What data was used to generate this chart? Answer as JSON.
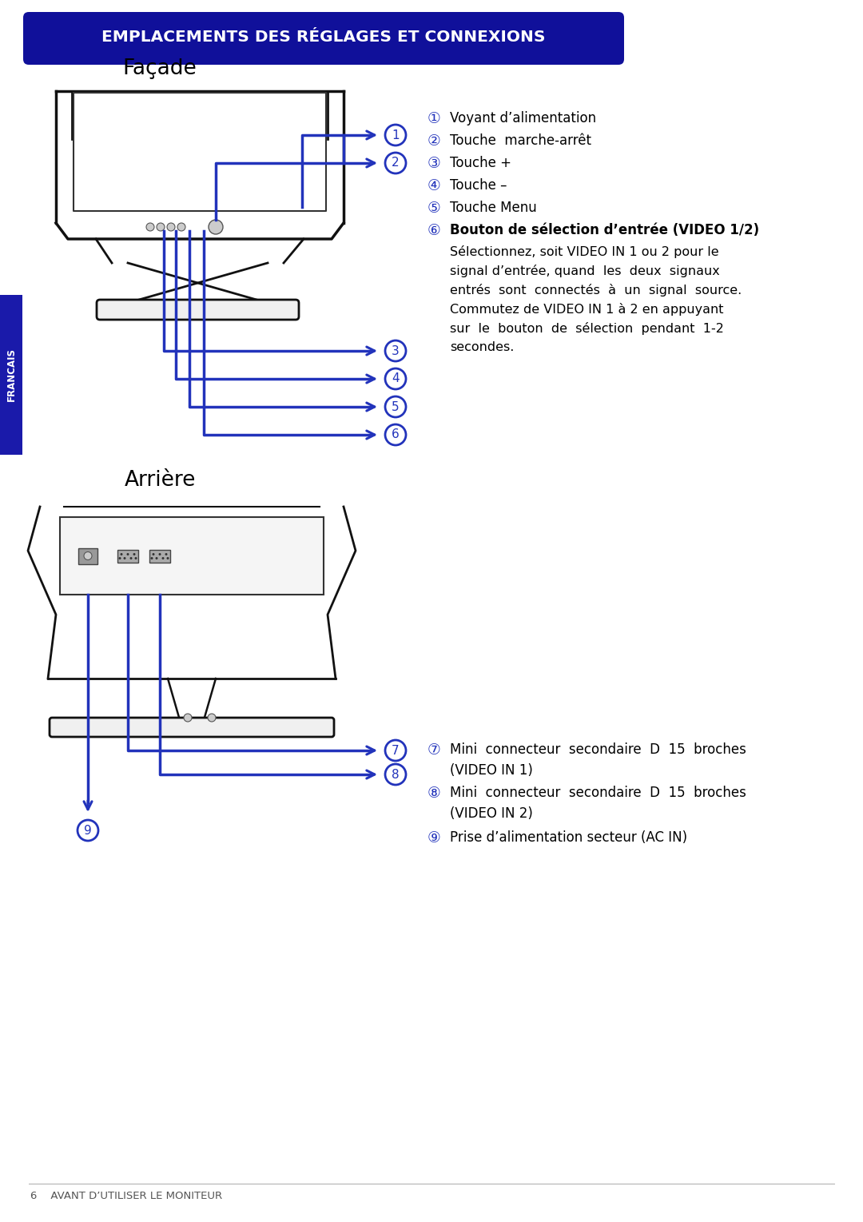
{
  "title": "EMPLACEMENTS DES RÉGLAGES ET CONNEXIONS",
  "title_bg": "#10109a",
  "title_color": "#ffffff",
  "section1_label": "Façade",
  "section2_label": "Arrière",
  "francais_label": "FRANCAIS",
  "blue": "#1a1aaa",
  "arrow_blue": "#2233bb",
  "number_color": "#2233bb",
  "item1": "Voyant d’alimentation",
  "item2": "Touche  marche-arrêt",
  "item3": "Touche +",
  "item4": "Touche –",
  "item5": "Touche Menu",
  "item6": "Bouton de sélection d’entrée (VIDEO 1/2)",
  "item6b": "Sélectionnez, soit VIDEO IN 1 ou 2 pour le",
  "item6c": "signal d’entrée, quand  les  deux  signaux",
  "item6d": "entrés  sont  connectés  à  un  signal  source.",
  "item6e": "Commutez de VIDEO IN 1 à 2 en appuyant",
  "item6f": "sur  le  bouton  de  sélection  pendant  1-2",
  "item6g": "secondes.",
  "item7a": "Mini  connecteur  secondaire  D  15  broches",
  "item7b": "(VIDEO IN 1)",
  "item8a": "Mini  connecteur  secondaire  D  15  broches",
  "item8b": "(VIDEO IN 2)",
  "item9": "Prise d’alimentation secteur (AC IN)",
  "footer": "6    AVANT D’UTILISER LE MONITEUR",
  "bg": "#ffffff"
}
